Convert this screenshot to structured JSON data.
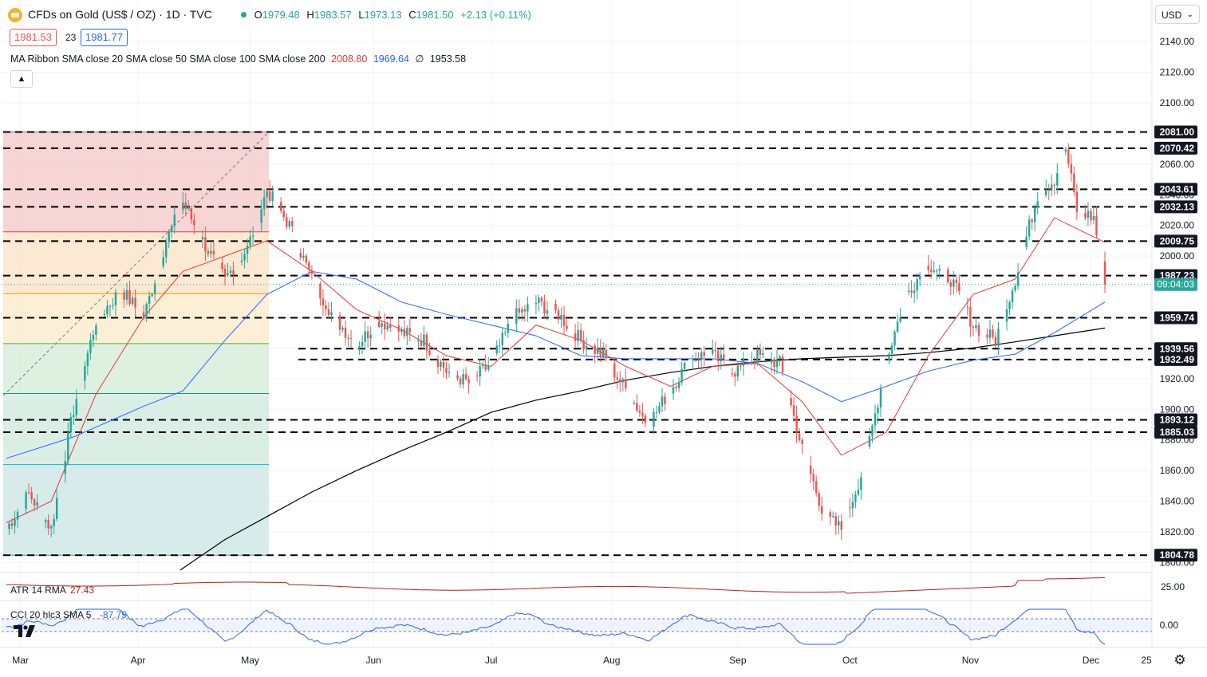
{
  "header": {
    "title": "CFDs on Gold (US$ / OZ) · 1D · TVC",
    "ohlc": {
      "o_label": "O",
      "o": "1979.48",
      "h_label": "H",
      "h": "1983.57",
      "l_label": "L",
      "l": "1973.13",
      "c_label": "C",
      "c": "1981.50",
      "change": "+2.13 (+0.11%)"
    },
    "bid": "1981.53",
    "spread": "23",
    "ask": "1981.77",
    "indicator_name": "MA Ribbon SMA close 20 SMA close 50 SMA close 100 SMA close 200",
    "ma_values": {
      "ma20": "2008.80",
      "ma50": "1969.64",
      "ma100": "∅",
      "ma200": "1953.58"
    },
    "collapse_icon": "chevron-up-icon",
    "currency": "USD",
    "currency_icon": "chevron-down-icon",
    "settings_icon": "gear-icon",
    "logo": "TV"
  },
  "colors": {
    "up": "#26a69a",
    "down": "#ef5350",
    "ma20": "#e53935",
    "ma50": "#2962ff",
    "ma200": "#000000",
    "atr": "#b71c1c",
    "cci": "#2962ff",
    "grid": "#f0f3fa",
    "level": "#000000"
  },
  "chart_data": {
    "type": "candlestick",
    "instrument": "CFDs on Gold (US$ / OZ)",
    "timeframe": "1D",
    "ylim": [
      1795,
      2150
    ],
    "y_ticks": [
      "1800.00",
      "1820.00",
      "1840.00",
      "1860.00",
      "1880.00",
      "1900.00",
      "1920.00",
      "1940.00",
      "1960.00",
      "1980.00",
      "2000.00",
      "2020.00",
      "2040.00",
      "2060.00",
      "2080.00",
      "2100.00",
      "2120.00",
      "2140.00"
    ],
    "x_ticks": [
      "Mar",
      "Apr",
      "May",
      "Jun",
      "Jul",
      "Aug",
      "Sep",
      "Oct",
      "Nov",
      "Dec",
      "25"
    ],
    "horizontal_levels": [
      "2081.00",
      "2070.42",
      "2043.61",
      "2032.13",
      "2009.75",
      "1987.23",
      "1959.74",
      "1939.56",
      "1932.49",
      "1893.12",
      "1885.03",
      "1804.78"
    ],
    "current_time_label": "09:04:03",
    "current_price": 1981.5,
    "fib_retracement": {
      "from": 1804.78,
      "to": 2081.0,
      "levels": [
        0,
        0.236,
        0.382,
        0.5,
        0.618,
        0.786,
        1
      ]
    },
    "anchors": {
      "close": [
        [
          0,
          1822
        ],
        [
          8,
          1845
        ],
        [
          16,
          1822
        ],
        [
          24,
          1900
        ],
        [
          32,
          1958
        ],
        [
          41,
          1978
        ],
        [
          49,
          1960
        ],
        [
          57,
          2010
        ],
        [
          63,
          2035
        ],
        [
          70,
          2010
        ],
        [
          78,
          1985
        ],
        [
          86,
          2005
        ],
        [
          93,
          2043
        ],
        [
          101,
          2020
        ],
        [
          109,
          1985
        ],
        [
          117,
          1960
        ],
        [
          125,
          1942
        ],
        [
          133,
          1958
        ],
        [
          141,
          1950
        ],
        [
          149,
          1945
        ],
        [
          157,
          1925
        ],
        [
          165,
          1917
        ],
        [
          173,
          1930
        ],
        [
          181,
          1960
        ],
        [
          189,
          1970
        ],
        [
          197,
          1962
        ],
        [
          205,
          1945
        ],
        [
          213,
          1935
        ],
        [
          221,
          1913
        ],
        [
          229,
          1890
        ],
        [
          237,
          1913
        ],
        [
          245,
          1935
        ],
        [
          252,
          1935
        ],
        [
          260,
          1925
        ],
        [
          268,
          1935
        ],
        [
          276,
          1930
        ],
        [
          284,
          1874
        ],
        [
          292,
          1830
        ],
        [
          298,
          1822
        ],
        [
          306,
          1862
        ],
        [
          314,
          1932
        ],
        [
          321,
          1975
        ],
        [
          329,
          1995
        ],
        [
          337,
          1985
        ],
        [
          345,
          1955
        ],
        [
          353,
          1945
        ],
        [
          360,
          1985
        ],
        [
          368,
          2040
        ],
        [
          374,
          2050
        ],
        [
          378,
          2070
        ],
        [
          382,
          2030
        ],
        [
          388,
          2025
        ],
        [
          392,
          1982
        ]
      ],
      "ma20": [
        [
          0,
          1826
        ],
        [
          16,
          1840
        ],
        [
          32,
          1910
        ],
        [
          49,
          1960
        ],
        [
          63,
          1990
        ],
        [
          78,
          2000
        ],
        [
          93,
          2010
        ],
        [
          109,
          1990
        ],
        [
          125,
          1965
        ],
        [
          141,
          1952
        ],
        [
          157,
          1935
        ],
        [
          173,
          1928
        ],
        [
          189,
          1955
        ],
        [
          205,
          1945
        ],
        [
          221,
          1928
        ],
        [
          237,
          1915
        ],
        [
          252,
          1928
        ],
        [
          268,
          1930
        ],
        [
          284,
          1905
        ],
        [
          298,
          1870
        ],
        [
          314,
          1885
        ],
        [
          329,
          1935
        ],
        [
          345,
          1975
        ],
        [
          360,
          1985
        ],
        [
          374,
          2025
        ],
        [
          392,
          2009
        ]
      ],
      "ma50": [
        [
          0,
          1868
        ],
        [
          24,
          1882
        ],
        [
          49,
          1902
        ],
        [
          63,
          1912
        ],
        [
          78,
          1945
        ],
        [
          93,
          1975
        ],
        [
          109,
          1990
        ],
        [
          125,
          1985
        ],
        [
          141,
          1970
        ],
        [
          157,
          1962
        ],
        [
          173,
          1955
        ],
        [
          189,
          1948
        ],
        [
          205,
          1935
        ],
        [
          221,
          1933
        ],
        [
          237,
          1933
        ],
        [
          252,
          1933
        ],
        [
          268,
          1930
        ],
        [
          284,
          1918
        ],
        [
          298,
          1905
        ],
        [
          314,
          1915
        ],
        [
          329,
          1925
        ],
        [
          345,
          1932
        ],
        [
          360,
          1936
        ],
        [
          374,
          1950
        ],
        [
          392,
          1970
        ]
      ],
      "ma200": [
        [
          62,
          1795
        ],
        [
          78,
          1815
        ],
        [
          93,
          1830
        ],
        [
          109,
          1846
        ],
        [
          125,
          1860
        ],
        [
          141,
          1873
        ],
        [
          157,
          1885
        ],
        [
          173,
          1898
        ],
        [
          189,
          1906
        ],
        [
          205,
          1912
        ],
        [
          221,
          1919
        ],
        [
          237,
          1924
        ],
        [
          252,
          1928
        ],
        [
          268,
          1931
        ],
        [
          284,
          1933
        ],
        [
          298,
          1934
        ],
        [
          314,
          1935
        ],
        [
          329,
          1937
        ],
        [
          345,
          1940
        ],
        [
          360,
          1944
        ],
        [
          374,
          1948
        ],
        [
          392,
          1953
        ]
      ]
    },
    "atr": {
      "name": "ATR 14 RMA",
      "value": "27.43",
      "tick": "25.00"
    },
    "cci": {
      "name": "CCI 20 hlc3 SMA 5",
      "value": "-87.79",
      "tick": "0.00"
    }
  }
}
